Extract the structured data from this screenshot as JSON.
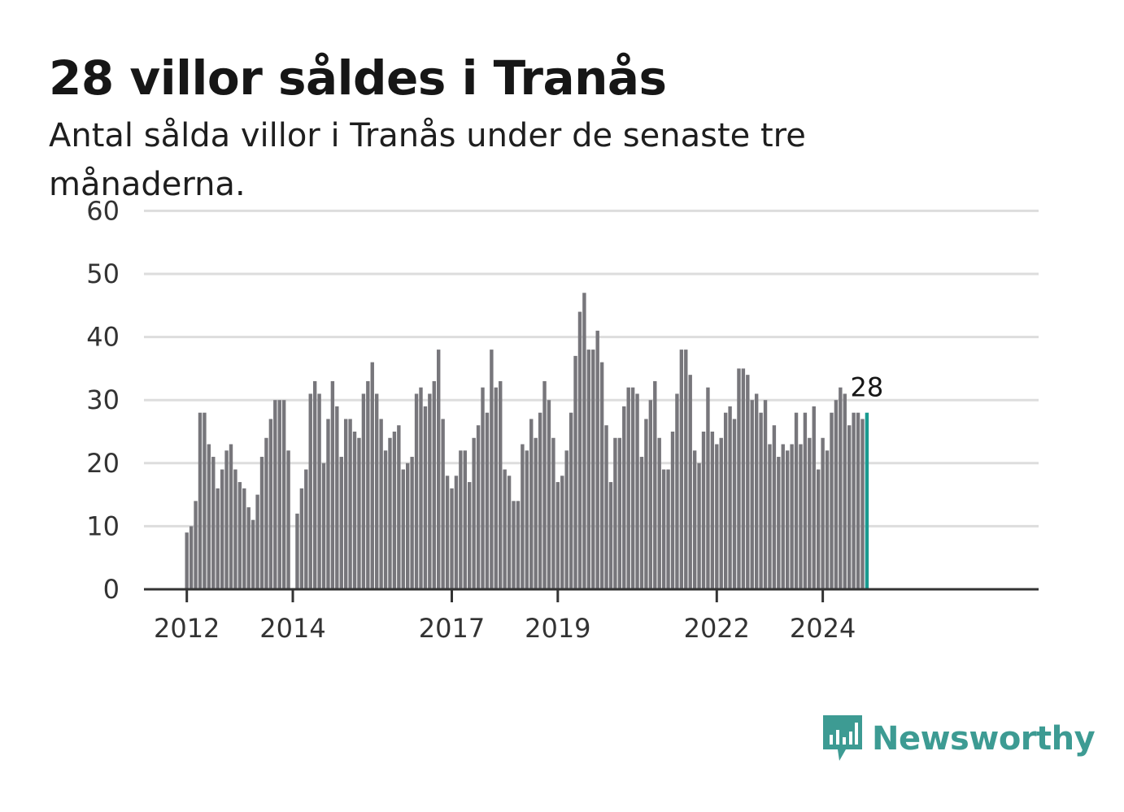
{
  "title": "28 villor såldes i Tranås",
  "subtitle": "Antal sålda villor i Tranås under de senaste tre månaderna.",
  "brand": {
    "name": "Newsworthy",
    "color": "#3d9b93",
    "icon": "newsworthy-logo-icon"
  },
  "colors": {
    "bar": "#77767b",
    "highlight": "#1a9a90",
    "grid": "#dddddd",
    "axis": "#333333"
  },
  "chart_data": {
    "type": "bar",
    "x_start": "2012-01",
    "interval": "month",
    "ylim": [
      0,
      60
    ],
    "yticks": [
      0,
      10,
      20,
      30,
      40,
      50,
      60
    ],
    "xtick_labels": [
      "2012",
      "2014",
      "2017",
      "2019",
      "2022",
      "2024"
    ],
    "grid": true,
    "highlight_last": true,
    "last_value_label": "28",
    "values": [
      9,
      10,
      14,
      28,
      28,
      23,
      21,
      16,
      19,
      22,
      23,
      19,
      17,
      16,
      13,
      11,
      15,
      21,
      24,
      27,
      30,
      30,
      30,
      22,
      0,
      12,
      16,
      19,
      31,
      33,
      31,
      20,
      27,
      33,
      29,
      21,
      27,
      27,
      25,
      24,
      31,
      33,
      36,
      31,
      27,
      22,
      24,
      25,
      26,
      19,
      20,
      21,
      31,
      32,
      29,
      31,
      33,
      38,
      27,
      18,
      16,
      18,
      22,
      22,
      17,
      24,
      26,
      32,
      28,
      38,
      32,
      33,
      19,
      18,
      14,
      14,
      23,
      22,
      27,
      24,
      28,
      33,
      30,
      24,
      17,
      18,
      22,
      28,
      37,
      44,
      47,
      38,
      38,
      41,
      36,
      26,
      17,
      24,
      24,
      29,
      32,
      32,
      31,
      21,
      27,
      30,
      33,
      24,
      19,
      19,
      25,
      31,
      38,
      38,
      34,
      22,
      20,
      25,
      32,
      25,
      23,
      24,
      28,
      29,
      27,
      35,
      35,
      34,
      30,
      31,
      28,
      30,
      23,
      26,
      21,
      23,
      22,
      23,
      28,
      23,
      28,
      24,
      29,
      19,
      24,
      22,
      28,
      30,
      32,
      31,
      26,
      28,
      28,
      27,
      28
    ]
  }
}
